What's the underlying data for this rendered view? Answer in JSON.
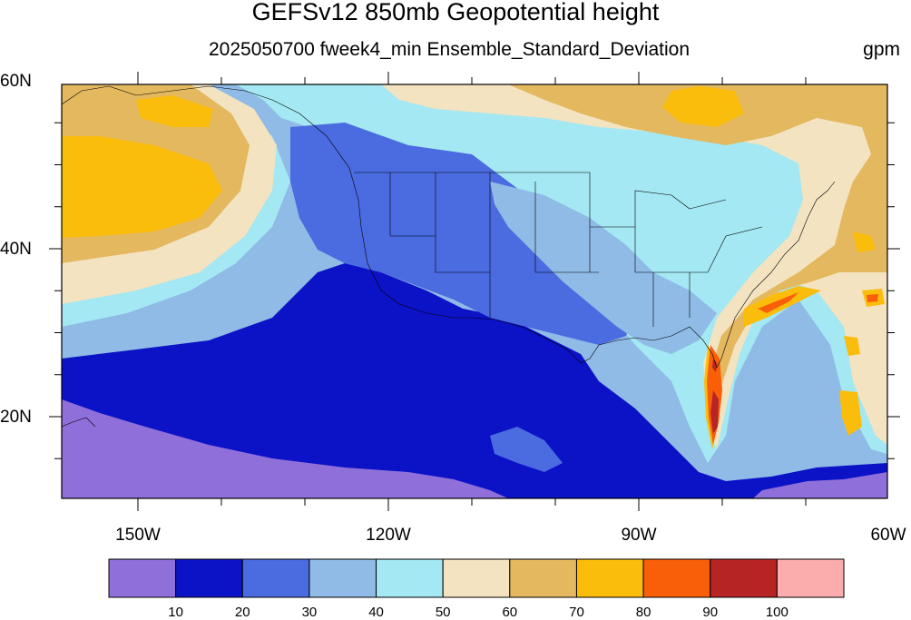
{
  "title": "GEFSv12 850mb Geopotential height",
  "subtitle": "2025050700 fweek4_min Ensemble_Standard_Deviation",
  "units": "gpm",
  "lat_labels": [
    "60N",
    "40N",
    "20N"
  ],
  "lon_labels": [
    "150W",
    "120W",
    "90W",
    "60W"
  ],
  "colorbar": {
    "colors": [
      "#8f6fd9",
      "#0c12c6",
      "#4b6be0",
      "#8fbbe6",
      "#a3e8f2",
      "#f3e3c0",
      "#e4b85f",
      "#fbbd0c",
      "#f95f09",
      "#b72424",
      "#fbacac"
    ],
    "labels": [
      "10",
      "20",
      "30",
      "40",
      "50",
      "60",
      "70",
      "80",
      "90",
      "100"
    ]
  }
}
